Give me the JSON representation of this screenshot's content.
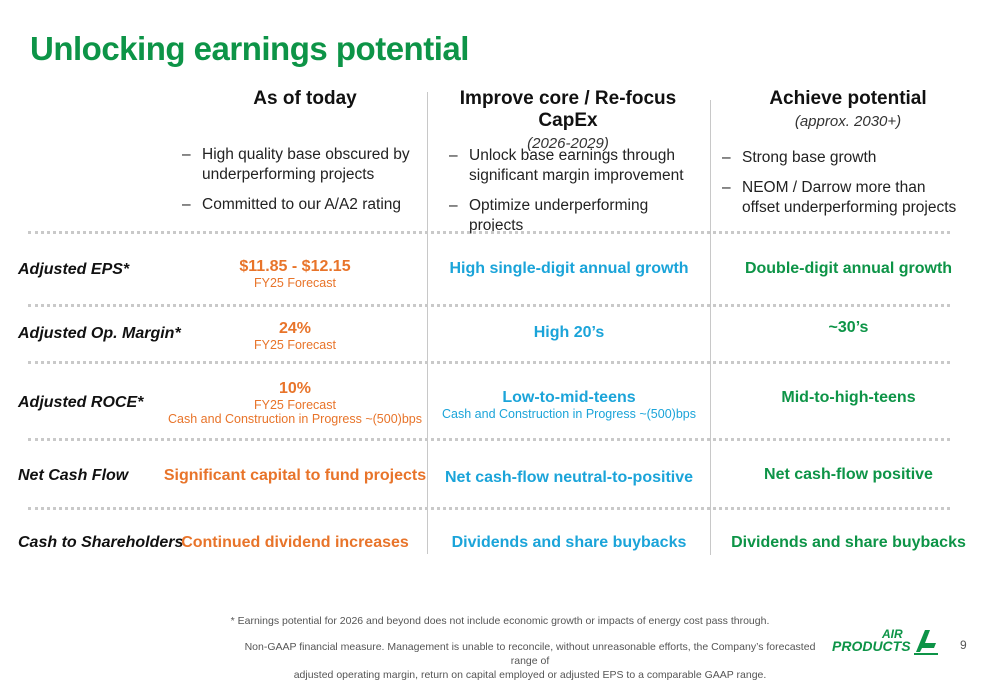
{
  "title": "Unlocking earnings potential",
  "columns": [
    {
      "heading": "As of today",
      "sub": ""
    },
    {
      "heading": "Improve core / Re-focus CapEx",
      "sub": "(2026-2029)"
    },
    {
      "heading": "Achieve potential",
      "sub": "(approx. 2030+)"
    }
  ],
  "bullets": [
    [
      "High quality base obscured by underperforming projects",
      "Committed to our A/A2 rating"
    ],
    [
      "Unlock base earnings through significant margin improvement",
      "Optimize underperforming projects"
    ],
    [
      "Strong base growth",
      "NEOM / Darrow more than offset underperforming projects"
    ]
  ],
  "rows": [
    {
      "label": "Adjusted EPS*",
      "c1": {
        "main": "$11.85 - $12.15",
        "sub": "FY25 Forecast",
        "sub2": ""
      },
      "c2": {
        "main": "High single-digit annual growth",
        "sub": ""
      },
      "c3": {
        "main": "Double-digit annual growth"
      }
    },
    {
      "label": "Adjusted Op. Margin*",
      "c1": {
        "main": "24%",
        "sub": "FY25 Forecast",
        "sub2": ""
      },
      "c2": {
        "main": "High 20’s",
        "sub": ""
      },
      "c3": {
        "main": "~30’s"
      }
    },
    {
      "label": "Adjusted ROCE*",
      "c1": {
        "main": "10%",
        "sub": "FY25 Forecast",
        "sub2": "Cash and Construction in Progress ~(500)bps"
      },
      "c2": {
        "main": "Low-to-mid-teens",
        "sub": "Cash and Construction in Progress ~(500)bps"
      },
      "c3": {
        "main": "Mid-to-high-teens"
      }
    },
    {
      "label": "Net Cash Flow",
      "c1": {
        "main": "Significant capital to fund projects",
        "sub": "",
        "sub2": ""
      },
      "c2": {
        "main": "Net cash-flow neutral-to-positive",
        "sub": ""
      },
      "c3": {
        "main": "Net cash-flow positive"
      }
    },
    {
      "label": "Cash to Shareholders",
      "c1": {
        "main": "Continued dividend increases",
        "sub": "",
        "sub2": ""
      },
      "c2": {
        "main": "Dividends and share buybacks",
        "sub": ""
      },
      "c3": {
        "main": "Dividends and share buybacks"
      }
    }
  ],
  "footnote1": "* Earnings potential for 2026 and beyond does not include economic growth or impacts of energy cost pass through.",
  "footnote2_line1": "Non-GAAP financial measure. Management is unable to reconcile, without unreasonable efforts, the Company’s forecasted range of",
  "footnote2_line2": "adjusted operating margin, return on capital employed or adjusted EPS to a comparable GAAP range.",
  "logo": {
    "line1": "AIR",
    "line2": "PRODUCTS",
    "color": "#0d9447"
  },
  "page_number": "9"
}
